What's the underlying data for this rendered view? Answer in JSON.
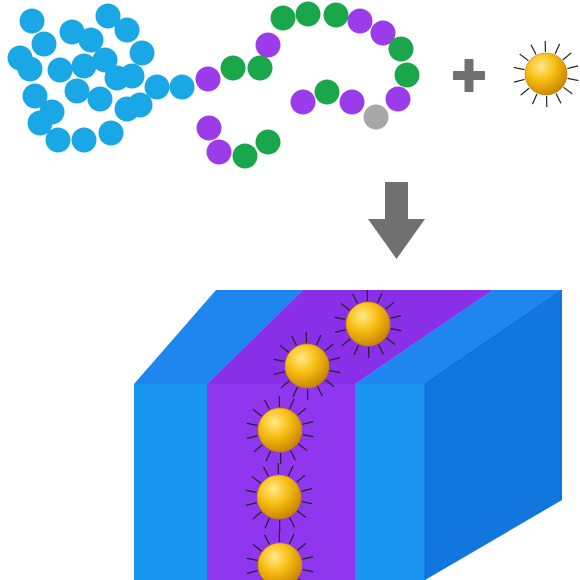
{
  "colors": {
    "background": "#ffffff",
    "block_a_bead": "#1aa7e6",
    "block_b_purple": "#9b3bea",
    "block_b_green": "#1aa64b",
    "end_group": "#a8a8a8",
    "operator": "#707070",
    "slab_blue_front": "#1a95f0",
    "slab_blue_top": "#1e86ee",
    "slab_blue_side": "#1176dd",
    "slab_purple_front": "#8f36ee",
    "slab_purple_top": "#8a2fe8",
    "nanoparticle_light": "#ffe98a",
    "nanoparticle_mid": "#f7be12",
    "nanoparticle_dark": "#c27d00",
    "ligand": "#222222"
  },
  "icons": {
    "polymer": "block-copolymer-chain-icon",
    "plus": "plus-icon",
    "nanoparticle": "ligand-coated-nanoparticle-icon",
    "arrow": "down-arrow-icon",
    "assembly": "lamellar-domain-block-icon"
  },
  "diagram": {
    "polymer_chain": {
      "block_a_count": 26,
      "block_b_purple_count": 9,
      "block_b_green_count": 10,
      "end_group_count": 1
    },
    "assembly": {
      "nanoparticles_in_domain": 5
    }
  }
}
